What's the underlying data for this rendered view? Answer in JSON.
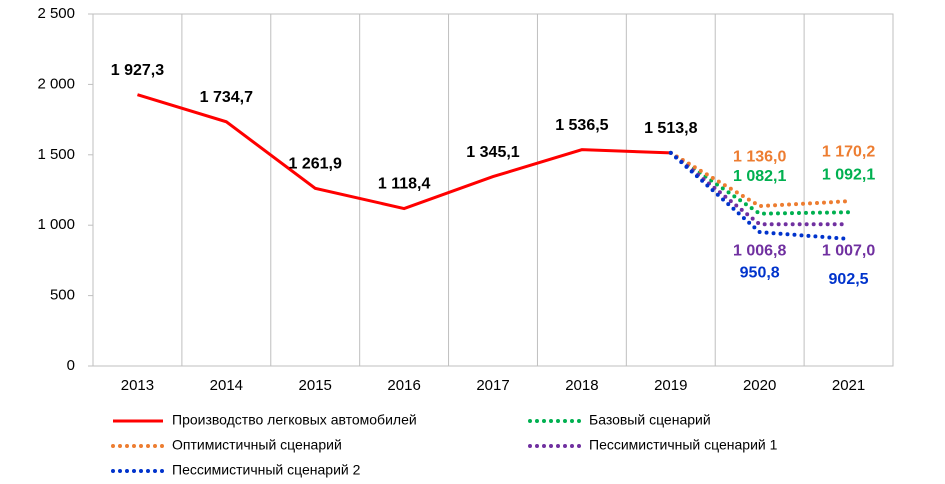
{
  "chart_data": {
    "type": "line",
    "categories": [
      "2013",
      "2014",
      "2015",
      "2016",
      "2017",
      "2018",
      "2019",
      "2020",
      "2021"
    ],
    "ylim": [
      0,
      2500
    ],
    "yticks": [
      0,
      500,
      {
        "value": 1000,
        "label": "1 000"
      },
      {
        "value": 1500,
        "label": "1 500"
      },
      {
        "value": 2000,
        "label": "2 000"
      },
      {
        "value": 2500,
        "label": "2 500"
      }
    ],
    "grid": "vertical",
    "series": [
      {
        "name": "Производство легковых автомобилей",
        "color": "#ff0000",
        "style": "solid",
        "values": [
          1927.3,
          1734.7,
          1261.9,
          1118.4,
          1345.1,
          1536.5,
          1513.8,
          null,
          null
        ],
        "value_labels": [
          "1 927,3",
          "1 734,7",
          "1 261,9",
          "1 118,4",
          "1 345,1",
          "1 536,5",
          "1 513,8",
          null,
          null
        ]
      },
      {
        "name": "Базовый сценарий",
        "color": "#00b050",
        "style": "dotted",
        "values": [
          null,
          null,
          null,
          null,
          null,
          null,
          1513.8,
          1082.1,
          1092.1
        ],
        "value_labels": [
          null,
          null,
          null,
          null,
          null,
          null,
          null,
          "1 082,1",
          "1 092,1"
        ]
      },
      {
        "name": "Оптимистичный сценарий",
        "color": "#ed7d31",
        "style": "dotted",
        "values": [
          null,
          null,
          null,
          null,
          null,
          null,
          1513.8,
          1136.0,
          1170.2
        ],
        "value_labels": [
          null,
          null,
          null,
          null,
          null,
          null,
          null,
          "1 136,0",
          "1 170,2"
        ]
      },
      {
        "name": "Пессимистичный сценарий 1",
        "color": "#7030a0",
        "style": "dotted",
        "values": [
          null,
          null,
          null,
          null,
          null,
          null,
          1513.8,
          1006.8,
          1007.0
        ],
        "value_labels": [
          null,
          null,
          null,
          null,
          null,
          null,
          null,
          "1 006,8",
          "1 007,0"
        ]
      },
      {
        "name": "Пессимистичный сценарий 2",
        "color": "#0033cc",
        "style": "dotted",
        "values": [
          null,
          null,
          null,
          null,
          null,
          null,
          1513.8,
          950.8,
          902.5
        ],
        "value_labels": [
          null,
          null,
          null,
          null,
          null,
          null,
          null,
          "950,8",
          "902,5"
        ]
      }
    ]
  }
}
